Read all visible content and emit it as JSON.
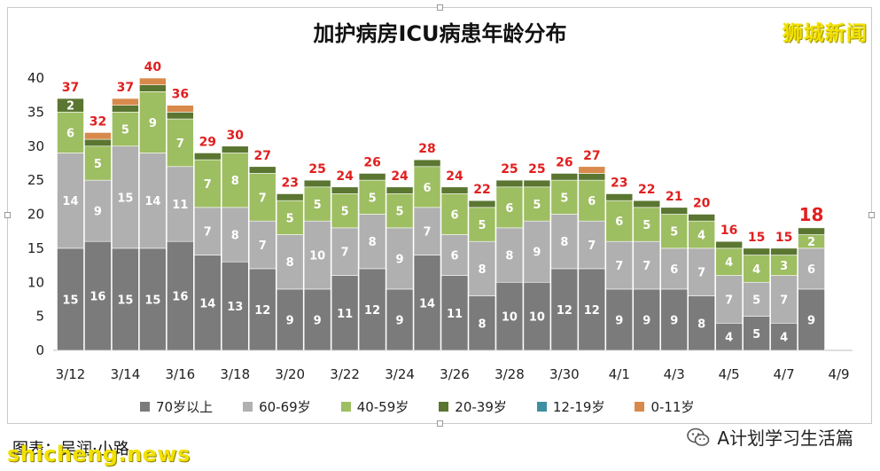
{
  "header": {
    "title": "加护病房ICU病患年龄分布",
    "brand": "狮城新闻"
  },
  "footer": {
    "caption": "图表：吴润·小路",
    "watermark": "shicheng.news",
    "account": "A计划学习生活篇",
    "account_icon": "wechat-icon"
  },
  "colors": {
    "70岁以上": "#7b7b7b",
    "60-69岁": "#b0b0b0",
    "40-59岁": "#9ebe62",
    "20-39岁": "#5a7631",
    "12-19岁": "#3f8fa2",
    "0-11岁": "#d88a4c",
    "total_label": "#e11f1f"
  },
  "chart_data": {
    "type": "bar",
    "stacked": true,
    "title": "加护病房ICU病患年龄分布",
    "xlabel": "",
    "ylabel": "",
    "ylim": [
      0,
      40
    ],
    "yticks": [
      0,
      5,
      10,
      15,
      20,
      25,
      30,
      35,
      40
    ],
    "grid": false,
    "legend_position": "bottom",
    "categories": [
      "3/12",
      "3/13",
      "3/14",
      "3/15",
      "3/16",
      "3/17",
      "3/18",
      "3/19",
      "3/20",
      "3/21",
      "3/22",
      "3/23",
      "3/24",
      "3/25",
      "3/26",
      "3/27",
      "3/28",
      "3/29",
      "3/30",
      "3/31",
      "4/1",
      "4/2",
      "4/3",
      "4/4",
      "4/5",
      "4/6",
      "4/7",
      "4/8"
    ],
    "x_tick_labels": [
      "3/12",
      "3/14",
      "3/16",
      "3/18",
      "3/20",
      "3/22",
      "3/24",
      "3/26",
      "3/28",
      "3/30",
      "4/1",
      "4/3",
      "4/5",
      "4/7",
      "4/9"
    ],
    "series": [
      {
        "name": "70岁以上",
        "values": [
          15,
          16,
          15,
          15,
          16,
          14,
          13,
          12,
          9,
          9,
          11,
          12,
          9,
          14,
          11,
          8,
          10,
          10,
          12,
          12,
          9,
          9,
          9,
          8,
          4,
          5,
          4,
          9
        ]
      },
      {
        "name": "60-69岁",
        "values": [
          14,
          9,
          15,
          14,
          11,
          7,
          8,
          7,
          8,
          10,
          7,
          8,
          9,
          7,
          6,
          8,
          8,
          9,
          8,
          7,
          7,
          7,
          6,
          7,
          7,
          5,
          7,
          6
        ]
      },
      {
        "name": "40-59岁",
        "values": [
          6,
          5,
          5,
          9,
          7,
          7,
          8,
          7,
          5,
          5,
          5,
          5,
          5,
          6,
          6,
          5,
          6,
          5,
          5,
          6,
          6,
          5,
          5,
          4,
          4,
          4,
          3,
          2
        ]
      },
      {
        "name": "20-39岁",
        "values": [
          2,
          1,
          1,
          1,
          1,
          1,
          1,
          1,
          1,
          1,
          1,
          1,
          1,
          1,
          1,
          1,
          1,
          1,
          1,
          1,
          1,
          1,
          1,
          1,
          1,
          1,
          1,
          1
        ]
      },
      {
        "name": "12-19岁",
        "values": [
          0,
          0,
          0,
          0,
          0,
          0,
          0,
          0,
          0,
          0,
          0,
          0,
          0,
          0,
          0,
          0,
          0,
          0,
          0,
          0,
          0,
          0,
          0,
          0,
          0,
          0,
          0,
          0
        ]
      },
      {
        "name": "0-11岁",
        "values": [
          0,
          1,
          1,
          1,
          1,
          0,
          0,
          0,
          0,
          0,
          0,
          0,
          0,
          0,
          0,
          0,
          0,
          0,
          0,
          1,
          0,
          0,
          0,
          0,
          0,
          0,
          0,
          0
        ]
      }
    ],
    "segment_labels": {
      "70岁以上": [
        15,
        16,
        15,
        15,
        16,
        14,
        13,
        12,
        9,
        9,
        11,
        12,
        9,
        14,
        11,
        8,
        10,
        10,
        12,
        12,
        9,
        9,
        9,
        8,
        4,
        5,
        4,
        9
      ],
      "60-69岁": [
        14,
        9,
        15,
        14,
        11,
        7,
        8,
        7,
        8,
        10,
        7,
        8,
        9,
        7,
        6,
        8,
        8,
        9,
        8,
        7,
        7,
        7,
        6,
        7,
        7,
        5,
        7,
        6
      ],
      "40-59岁": [
        6,
        5,
        5,
        9,
        7,
        7,
        8,
        7,
        5,
        5,
        5,
        5,
        5,
        6,
        6,
        5,
        6,
        5,
        5,
        6,
        6,
        5,
        5,
        4,
        4,
        4,
        3,
        2
      ],
      "20-39岁": [
        2,
        null,
        null,
        null,
        null,
        null,
        null,
        null,
        null,
        null,
        null,
        null,
        null,
        null,
        null,
        null,
        null,
        null,
        null,
        null,
        null,
        null,
        null,
        null,
        null,
        null,
        null,
        null
      ]
    },
    "totals": [
      37,
      32,
      37,
      40,
      36,
      29,
      30,
      27,
      23,
      25,
      24,
      26,
      24,
      28,
      24,
      22,
      25,
      25,
      26,
      27,
      23,
      22,
      21,
      20,
      16,
      15,
      15,
      18
    ],
    "highlight_last_total": true
  }
}
